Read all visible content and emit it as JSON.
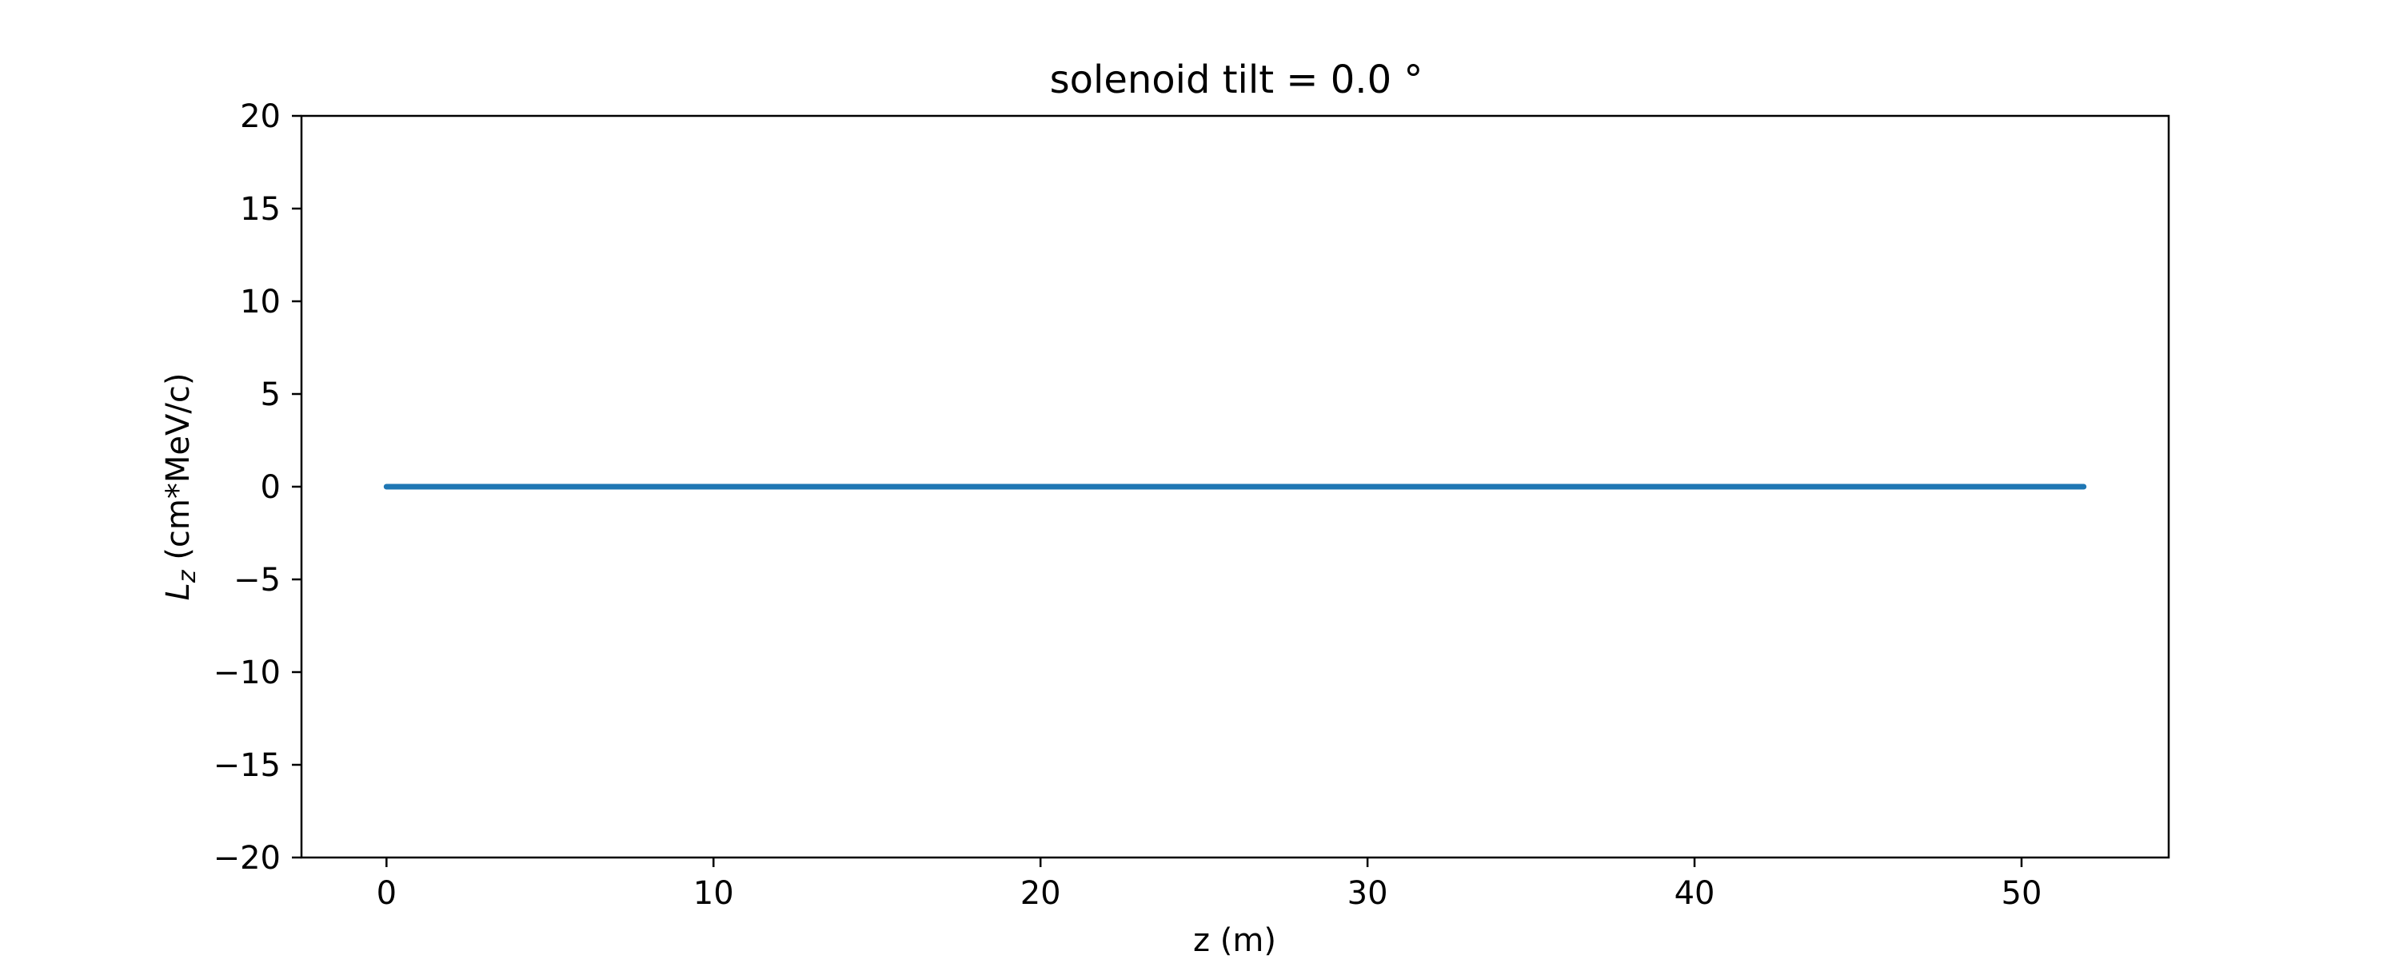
{
  "chart_data": {
    "type": "line",
    "title": "solenoid tilt = 0.0 °",
    "xlabel": "z (m)",
    "ylabel_main": "L",
    "ylabel_sub": "z",
    "ylabel_rest": " (cm*MeV/c)",
    "xlim": [
      -2.6,
      54.5
    ],
    "ylim": [
      -20,
      20
    ],
    "xticks": [
      0,
      10,
      20,
      30,
      40,
      50
    ],
    "yticks": [
      -20,
      -15,
      -10,
      -5,
      0,
      5,
      10,
      15,
      20
    ],
    "grid": false,
    "series": [
      {
        "color": "#1f77b4",
        "x": [
          0,
          5,
          10,
          15,
          20,
          25,
          30,
          35,
          40,
          45,
          50,
          51.9
        ],
        "y": [
          0,
          0,
          0,
          0,
          0,
          0,
          0,
          0,
          0,
          0,
          0,
          0
        ]
      }
    ]
  }
}
